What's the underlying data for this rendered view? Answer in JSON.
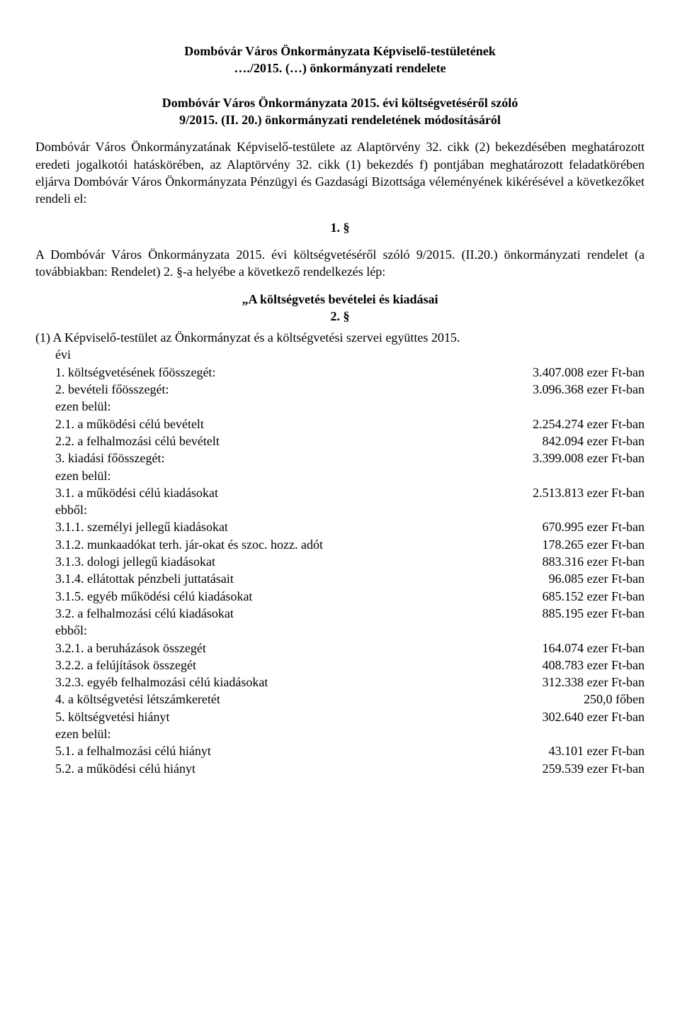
{
  "header": {
    "line1": "Dombóvár Város Önkormányzata Képviselő-testületének",
    "line2": "…./2015. (…) önkormányzati rendelete",
    "line3": "Dombóvár Város Önkormányzata 2015. évi költségvetéséről szóló",
    "line4": "9/2015. (II. 20.) önkormányzati rendeletének módosításáról"
  },
  "preamble": "Dombóvár Város Önkormányzatának Képviselő-testülete az Alaptörvény 32. cikk (2) bekezdésében meghatározott eredeti jogalkotói hatáskörében, az Alaptörvény 32. cikk (1) bekezdés f) pontjában meghatározott feladatkörében eljárva Dombóvár Város Önkormányzata Pénzügyi és Gazdasági Bizottsága véleményének kikérésével a következőket rendeli el:",
  "sec1_num": "1. §",
  "sec1_text": "A Dombóvár Város Önkormányzata 2015. évi költségvetéséről szóló 9/2015. (II.20.) önkormányzati rendelet (a továbbiakban: Rendelet) 2. §-a helyébe a következő rendelkezés lép:",
  "quote_heading": "„A költségvetés bevételei és kiadásai",
  "quote_secnum": "2. §",
  "list_intro_a": "(1)   A Képviselő-testület az Önkormányzat és a költségvetési szervei együttes 2015.",
  "list_intro_b": "évi",
  "rows": [
    {
      "label": "1. költségvetésének főösszegét:",
      "value": "3.407.008 ezer Ft-ban"
    },
    {
      "label": "2. bevételi főösszegét:",
      "value": "3.096.368 ezer Ft-ban"
    },
    {
      "label": "ezen belül:",
      "value": ""
    },
    {
      "label": "2.1. a működési célú bevételt",
      "value": "2.254.274 ezer Ft-ban"
    },
    {
      "label": "2.2. a felhalmozási célú bevételt",
      "value": "842.094 ezer Ft-ban"
    },
    {
      "label": "3. kiadási főösszegét:",
      "value": "3.399.008 ezer Ft-ban"
    },
    {
      "label": "ezen belül:",
      "value": ""
    },
    {
      "label": "3.1. a működési célú kiadásokat",
      "value": "2.513.813 ezer Ft-ban"
    },
    {
      "label": "ebből:",
      "value": ""
    },
    {
      "label": "3.1.1. személyi jellegű kiadásokat",
      "value": "670.995 ezer Ft-ban"
    },
    {
      "label": "3.1.2. munkaadókat terh. jár-okat és szoc. hozz. adót",
      "value": "178.265 ezer Ft-ban"
    },
    {
      "label": "3.1.3. dologi jellegű kiadásokat",
      "value": "883.316 ezer Ft-ban"
    },
    {
      "label": "3.1.4. ellátottak pénzbeli juttatásait",
      "value": "96.085 ezer Ft-ban"
    },
    {
      "label": "3.1.5. egyéb működési célú kiadásokat",
      "value": "685.152 ezer Ft-ban"
    },
    {
      "label": "3.2. a felhalmozási célú kiadásokat",
      "value": "885.195 ezer Ft-ban"
    },
    {
      "label": "ebből:",
      "value": ""
    },
    {
      "label": "3.2.1. a beruházások összegét",
      "value": "164.074 ezer Ft-ban"
    },
    {
      "label": "3.2.2. a felújítások összegét",
      "value": "408.783 ezer Ft-ban"
    },
    {
      "label": "3.2.3. egyéb felhalmozási célú kiadásokat",
      "value": "312.338 ezer Ft-ban"
    },
    {
      "label": "4. a költségvetési létszámkeretét",
      "value": "250,0 főben"
    },
    {
      "label": "5. költségvetési hiányt",
      "value": "302.640 ezer Ft-ban"
    },
    {
      "label": "ezen belül:",
      "value": ""
    },
    {
      "label": "5.1. a felhalmozási célú hiányt",
      "value": "43.101 ezer Ft-ban"
    },
    {
      "label": "5.2. a működési célú hiányt",
      "value": "259.539 ezer Ft-ban"
    }
  ]
}
